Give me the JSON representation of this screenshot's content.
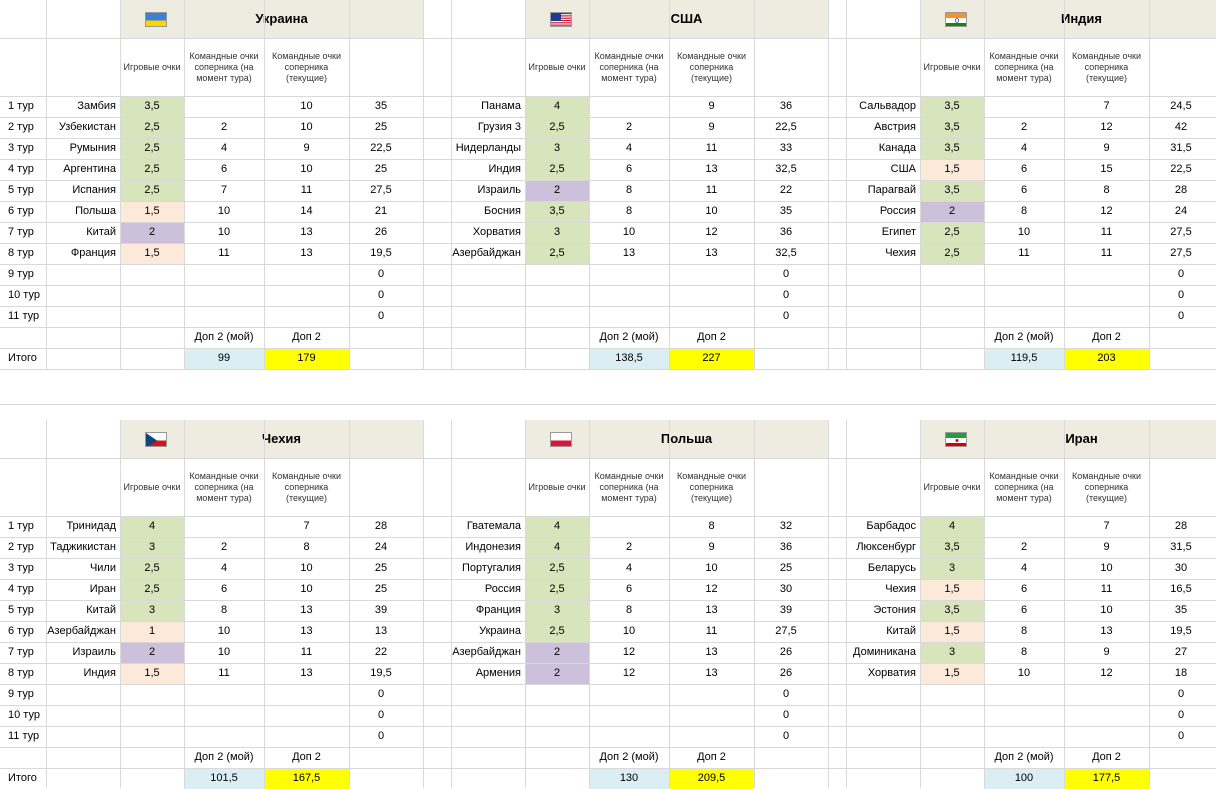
{
  "col_headers": {
    "game_points": "Игровые очки",
    "team_points_at_round": "Командные очки соперника (на момент тура)",
    "team_points_current": "Командные очки соперника (текущие)"
  },
  "round_labels": [
    "1 тур",
    "2 тур",
    "3 тур",
    "4 тур",
    "5 тур",
    "6 тур",
    "7 тур",
    "8 тур",
    "9 тур",
    "10 тур",
    "11 тур"
  ],
  "dop_mine_label": "Доп 2 (мой)",
  "dop_label": "Доп 2",
  "total_label": "Итого",
  "colors": {
    "green": "#d8e4bc",
    "pink": "#fde9d9",
    "purple": "#ccc0da",
    "blue": "#daeef3",
    "yellow": "#ffff00",
    "header": "#eeece1"
  },
  "panels": [
    {
      "country": "Украина",
      "flag": "ukraine-flag",
      "dop_mine": "99",
      "dop": "179",
      "rows": [
        {
          "opp": "Замбия",
          "gp": "3,5",
          "c": "green",
          "at": "",
          "cur": "10",
          "sum": "35"
        },
        {
          "opp": "Узбекистан",
          "gp": "2,5",
          "c": "green",
          "at": "2",
          "cur": "10",
          "sum": "25"
        },
        {
          "opp": "Румыния",
          "gp": "2,5",
          "c": "green",
          "at": "4",
          "cur": "9",
          "sum": "22,5"
        },
        {
          "opp": "Аргентина",
          "gp": "2,5",
          "c": "green",
          "at": "6",
          "cur": "10",
          "sum": "25"
        },
        {
          "opp": "Испания",
          "gp": "2,5",
          "c": "green",
          "at": "7",
          "cur": "11",
          "sum": "27,5"
        },
        {
          "opp": "Польша",
          "gp": "1,5",
          "c": "pink",
          "at": "10",
          "cur": "14",
          "sum": "21"
        },
        {
          "opp": "Китай",
          "gp": "2",
          "c": "purple",
          "at": "10",
          "cur": "13",
          "sum": "26"
        },
        {
          "opp": "Франция",
          "gp": "1,5",
          "c": "pink",
          "at": "11",
          "cur": "13",
          "sum": "19,5"
        },
        {
          "opp": "",
          "gp": "",
          "c": "",
          "at": "",
          "cur": "",
          "sum": "0"
        },
        {
          "opp": "",
          "gp": "",
          "c": "",
          "at": "",
          "cur": "",
          "sum": "0"
        },
        {
          "opp": "",
          "gp": "",
          "c": "",
          "at": "",
          "cur": "",
          "sum": "0"
        }
      ]
    },
    {
      "country": "США",
      "flag": "usa-flag",
      "dop_mine": "138,5",
      "dop": "227",
      "rows": [
        {
          "opp": "Панама",
          "gp": "4",
          "c": "green",
          "at": "",
          "cur": "9",
          "sum": "36"
        },
        {
          "opp": "Грузия 3",
          "gp": "2,5",
          "c": "green",
          "at": "2",
          "cur": "9",
          "sum": "22,5"
        },
        {
          "opp": "Нидерланды",
          "gp": "3",
          "c": "green",
          "at": "4",
          "cur": "11",
          "sum": "33"
        },
        {
          "opp": "Индия",
          "gp": "2,5",
          "c": "green",
          "at": "6",
          "cur": "13",
          "sum": "32,5"
        },
        {
          "opp": "Израиль",
          "gp": "2",
          "c": "purple",
          "at": "8",
          "cur": "11",
          "sum": "22"
        },
        {
          "opp": "Босния",
          "gp": "3,5",
          "c": "green",
          "at": "8",
          "cur": "10",
          "sum": "35"
        },
        {
          "opp": "Хорватия",
          "gp": "3",
          "c": "green",
          "at": "10",
          "cur": "12",
          "sum": "36"
        },
        {
          "opp": "Азербайджан",
          "gp": "2,5",
          "c": "green",
          "at": "13",
          "cur": "13",
          "sum": "32,5"
        },
        {
          "opp": "",
          "gp": "",
          "c": "",
          "at": "",
          "cur": "",
          "sum": "0"
        },
        {
          "opp": "",
          "gp": "",
          "c": "",
          "at": "",
          "cur": "",
          "sum": "0"
        },
        {
          "opp": "",
          "gp": "",
          "c": "",
          "at": "",
          "cur": "",
          "sum": "0"
        }
      ]
    },
    {
      "country": "Индия",
      "flag": "india-flag",
      "dop_mine": "119,5",
      "dop": "203",
      "rows": [
        {
          "opp": "Сальвадор",
          "gp": "3,5",
          "c": "green",
          "at": "",
          "cur": "7",
          "sum": "24,5"
        },
        {
          "opp": "Австрия",
          "gp": "3,5",
          "c": "green",
          "at": "2",
          "cur": "12",
          "sum": "42"
        },
        {
          "opp": "Канада",
          "gp": "3,5",
          "c": "green",
          "at": "4",
          "cur": "9",
          "sum": "31,5"
        },
        {
          "opp": "США",
          "gp": "1,5",
          "c": "pink",
          "at": "6",
          "cur": "15",
          "sum": "22,5"
        },
        {
          "opp": "Парагвай",
          "gp": "3,5",
          "c": "green",
          "at": "6",
          "cur": "8",
          "sum": "28"
        },
        {
          "opp": "Россия",
          "gp": "2",
          "c": "purple",
          "at": "8",
          "cur": "12",
          "sum": "24"
        },
        {
          "opp": "Египет",
          "gp": "2,5",
          "c": "green",
          "at": "10",
          "cur": "11",
          "sum": "27,5"
        },
        {
          "opp": "Чехия",
          "gp": "2,5",
          "c": "green",
          "at": "11",
          "cur": "11",
          "sum": "27,5"
        },
        {
          "opp": "",
          "gp": "",
          "c": "",
          "at": "",
          "cur": "",
          "sum": "0"
        },
        {
          "opp": "",
          "gp": "",
          "c": "",
          "at": "",
          "cur": "",
          "sum": "0"
        },
        {
          "opp": "",
          "gp": "",
          "c": "",
          "at": "",
          "cur": "",
          "sum": "0"
        }
      ]
    },
    {
      "country": "Чехия",
      "flag": "czech-flag",
      "dop_mine": "101,5",
      "dop": "167,5",
      "rows": [
        {
          "opp": "Тринидад",
          "gp": "4",
          "c": "green",
          "at": "",
          "cur": "7",
          "sum": "28"
        },
        {
          "opp": "Таджикистан",
          "gp": "3",
          "c": "green",
          "at": "2",
          "cur": "8",
          "sum": "24"
        },
        {
          "opp": "Чили",
          "gp": "2,5",
          "c": "green",
          "at": "4",
          "cur": "10",
          "sum": "25"
        },
        {
          "opp": "Иран",
          "gp": "2,5",
          "c": "green",
          "at": "6",
          "cur": "10",
          "sum": "25"
        },
        {
          "opp": "Китай",
          "gp": "3",
          "c": "green",
          "at": "8",
          "cur": "13",
          "sum": "39"
        },
        {
          "opp": "Азербайджан",
          "gp": "1",
          "c": "pink",
          "at": "10",
          "cur": "13",
          "sum": "13"
        },
        {
          "opp": "Израиль",
          "gp": "2",
          "c": "purple",
          "at": "10",
          "cur": "11",
          "sum": "22"
        },
        {
          "opp": "Индия",
          "gp": "1,5",
          "c": "pink",
          "at": "11",
          "cur": "13",
          "sum": "19,5"
        },
        {
          "opp": "",
          "gp": "",
          "c": "",
          "at": "",
          "cur": "",
          "sum": "0"
        },
        {
          "opp": "",
          "gp": "",
          "c": "",
          "at": "",
          "cur": "",
          "sum": "0"
        },
        {
          "opp": "",
          "gp": "",
          "c": "",
          "at": "",
          "cur": "",
          "sum": "0"
        }
      ]
    },
    {
      "country": "Польша",
      "flag": "poland-flag",
      "dop_mine": "130",
      "dop": "209,5",
      "rows": [
        {
          "opp": "Гватемала",
          "gp": "4",
          "c": "green",
          "at": "",
          "cur": "8",
          "sum": "32"
        },
        {
          "opp": "Индонезия",
          "gp": "4",
          "c": "green",
          "at": "2",
          "cur": "9",
          "sum": "36"
        },
        {
          "opp": "Португалия",
          "gp": "2,5",
          "c": "green",
          "at": "4",
          "cur": "10",
          "sum": "25"
        },
        {
          "opp": "Россия",
          "gp": "2,5",
          "c": "green",
          "at": "6",
          "cur": "12",
          "sum": "30"
        },
        {
          "opp": "Франция",
          "gp": "3",
          "c": "green",
          "at": "8",
          "cur": "13",
          "sum": "39"
        },
        {
          "opp": "Украина",
          "gp": "2,5",
          "c": "green",
          "at": "10",
          "cur": "11",
          "sum": "27,5"
        },
        {
          "opp": "Азербайджан",
          "gp": "2",
          "c": "purple",
          "at": "12",
          "cur": "13",
          "sum": "26"
        },
        {
          "opp": "Армения",
          "gp": "2",
          "c": "purple",
          "at": "12",
          "cur": "13",
          "sum": "26"
        },
        {
          "opp": "",
          "gp": "",
          "c": "",
          "at": "",
          "cur": "",
          "sum": "0"
        },
        {
          "opp": "",
          "gp": "",
          "c": "",
          "at": "",
          "cur": "",
          "sum": "0"
        },
        {
          "opp": "",
          "gp": "",
          "c": "",
          "at": "",
          "cur": "",
          "sum": "0"
        }
      ]
    },
    {
      "country": "Иран",
      "flag": "iran-flag",
      "dop_mine": "100",
      "dop": "177,5",
      "rows": [
        {
          "opp": "Барбадос",
          "gp": "4",
          "c": "green",
          "at": "",
          "cur": "7",
          "sum": "28"
        },
        {
          "opp": "Люксенбург",
          "gp": "3,5",
          "c": "green",
          "at": "2",
          "cur": "9",
          "sum": "31,5"
        },
        {
          "opp": "Беларусь",
          "gp": "3",
          "c": "green",
          "at": "4",
          "cur": "10",
          "sum": "30"
        },
        {
          "opp": "Чехия",
          "gp": "1,5",
          "c": "pink",
          "at": "6",
          "cur": "11",
          "sum": "16,5"
        },
        {
          "opp": "Эстония",
          "gp": "3,5",
          "c": "green",
          "at": "6",
          "cur": "10",
          "sum": "35"
        },
        {
          "opp": "Китай",
          "gp": "1,5",
          "c": "pink",
          "at": "8",
          "cur": "13",
          "sum": "19,5"
        },
        {
          "opp": "Доминикана",
          "gp": "3",
          "c": "green",
          "at": "8",
          "cur": "9",
          "sum": "27"
        },
        {
          "opp": "Хорватия",
          "gp": "1,5",
          "c": "pink",
          "at": "10",
          "cur": "12",
          "sum": "18"
        },
        {
          "opp": "",
          "gp": "",
          "c": "",
          "at": "",
          "cur": "",
          "sum": "0"
        },
        {
          "opp": "",
          "gp": "",
          "c": "",
          "at": "",
          "cur": "",
          "sum": "0"
        },
        {
          "opp": "",
          "gp": "",
          "c": "",
          "at": "",
          "cur": "",
          "sum": "0"
        }
      ]
    }
  ]
}
